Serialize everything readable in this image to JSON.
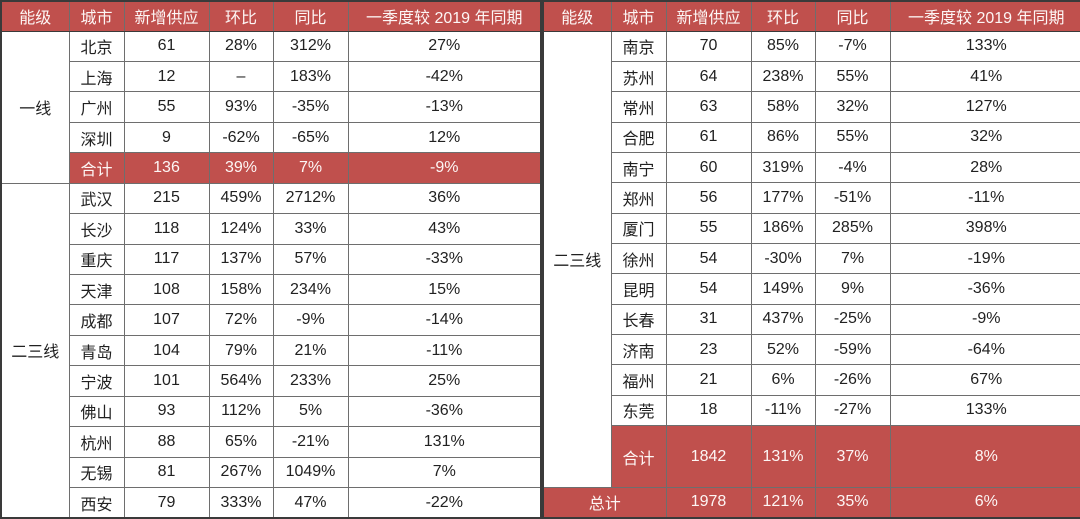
{
  "chart_data": {
    "type": "table",
    "columns": [
      "能级",
      "城市",
      "新增供应",
      "环比",
      "同比",
      "一季度较 2019 年同期"
    ],
    "left": {
      "tier1": {
        "label": "一线",
        "rows": [
          {
            "city": "北京",
            "supply": "61",
            "mom": "28%",
            "yoy": "312%",
            "vs2019": "27%"
          },
          {
            "city": "上海",
            "supply": "12",
            "mom": "–",
            "yoy": "183%",
            "vs2019": "-42%"
          },
          {
            "city": "广州",
            "supply": "55",
            "mom": "93%",
            "yoy": "-35%",
            "vs2019": "-13%"
          },
          {
            "city": "深圳",
            "supply": "9",
            "mom": "-62%",
            "yoy": "-65%",
            "vs2019": "12%"
          }
        ],
        "subtotal": {
          "label": "合计",
          "supply": "136",
          "mom": "39%",
          "yoy": "7%",
          "vs2019": "-9%"
        }
      },
      "tier23": {
        "label": "二三线",
        "rows": [
          {
            "city": "武汉",
            "supply": "215",
            "mom": "459%",
            "yoy": "2712%",
            "vs2019": "36%"
          },
          {
            "city": "长沙",
            "supply": "118",
            "mom": "124%",
            "yoy": "33%",
            "vs2019": "43%"
          },
          {
            "city": "重庆",
            "supply": "117",
            "mom": "137%",
            "yoy": "57%",
            "vs2019": "-33%"
          },
          {
            "city": "天津",
            "supply": "108",
            "mom": "158%",
            "yoy": "234%",
            "vs2019": "15%"
          },
          {
            "city": "成都",
            "supply": "107",
            "mom": "72%",
            "yoy": "-9%",
            "vs2019": "-14%"
          },
          {
            "city": "青岛",
            "supply": "104",
            "mom": "79%",
            "yoy": "21%",
            "vs2019": "-11%"
          },
          {
            "city": "宁波",
            "supply": "101",
            "mom": "564%",
            "yoy": "233%",
            "vs2019": "25%"
          },
          {
            "city": "佛山",
            "supply": "93",
            "mom": "112%",
            "yoy": "5%",
            "vs2019": "-36%"
          },
          {
            "city": "杭州",
            "supply": "88",
            "mom": "65%",
            "yoy": "-21%",
            "vs2019": "131%"
          },
          {
            "city": "无锡",
            "supply": "81",
            "mom": "267%",
            "yoy": "1049%",
            "vs2019": "7%"
          },
          {
            "city": "西安",
            "supply": "79",
            "mom": "333%",
            "yoy": "47%",
            "vs2019": "-22%"
          }
        ]
      }
    },
    "right": {
      "tier23": {
        "label": "二三线",
        "rows": [
          {
            "city": "南京",
            "supply": "70",
            "mom": "85%",
            "yoy": "-7%",
            "vs2019": "133%"
          },
          {
            "city": "苏州",
            "supply": "64",
            "mom": "238%",
            "yoy": "55%",
            "vs2019": "41%"
          },
          {
            "city": "常州",
            "supply": "63",
            "mom": "58%",
            "yoy": "32%",
            "vs2019": "127%"
          },
          {
            "city": "合肥",
            "supply": "61",
            "mom": "86%",
            "yoy": "55%",
            "vs2019": "32%"
          },
          {
            "city": "南宁",
            "supply": "60",
            "mom": "319%",
            "yoy": "-4%",
            "vs2019": "28%"
          },
          {
            "city": "郑州",
            "supply": "56",
            "mom": "177%",
            "yoy": "-51%",
            "vs2019": "-11%"
          },
          {
            "city": "厦门",
            "supply": "55",
            "mom": "186%",
            "yoy": "285%",
            "vs2019": "398%"
          },
          {
            "city": "徐州",
            "supply": "54",
            "mom": "-30%",
            "yoy": "7%",
            "vs2019": "-19%"
          },
          {
            "city": "昆明",
            "supply": "54",
            "mom": "149%",
            "yoy": "9%",
            "vs2019": "-36%"
          },
          {
            "city": "长春",
            "supply": "31",
            "mom": "437%",
            "yoy": "-25%",
            "vs2019": "-9%"
          },
          {
            "city": "济南",
            "supply": "23",
            "mom": "52%",
            "yoy": "-59%",
            "vs2019": "-64%"
          },
          {
            "city": "福州",
            "supply": "21",
            "mom": "6%",
            "yoy": "-26%",
            "vs2019": "67%"
          },
          {
            "city": "东莞",
            "supply": "18",
            "mom": "-11%",
            "yoy": "-27%",
            "vs2019": "133%"
          }
        ],
        "subtotal": {
          "label": "合计",
          "supply": "1842",
          "mom": "131%",
          "yoy": "37%",
          "vs2019": "8%"
        }
      },
      "grand_total": {
        "label": "总计",
        "supply": "1978",
        "mom": "121%",
        "yoy": "35%",
        "vs2019": "6%"
      }
    },
    "theme": {
      "header_bg": "#c0504d",
      "header_text": "#fdf6f5",
      "body_text": "#212121",
      "border_inner": "#6e6e6e",
      "border_outer": "#3a3a3a"
    }
  }
}
